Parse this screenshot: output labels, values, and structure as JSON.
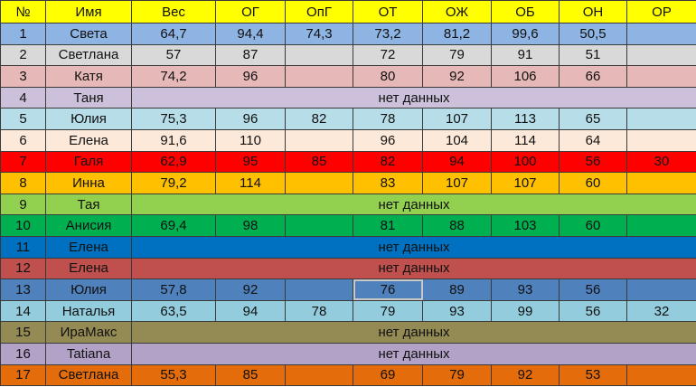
{
  "header": {
    "bg": "#ffff00",
    "columns": [
      "№",
      "Имя",
      "Вес",
      "ОГ",
      "ОпГ",
      "ОТ",
      "ОЖ",
      "ОБ",
      "ОН",
      "ОР"
    ]
  },
  "no_data_label": "нет данных",
  "selected_cell": {
    "row": 13,
    "column": "ОТ"
  },
  "rows": [
    {
      "n": "1",
      "name": "Света",
      "color": "#8eb4e3",
      "values": [
        "64,7",
        "94,4",
        "74,3",
        "73,2",
        "81,2",
        "99,6",
        "50,5",
        ""
      ]
    },
    {
      "n": "2",
      "name": "Светлана",
      "color": "#d9d9d9",
      "values": [
        "57",
        "87",
        "",
        "72",
        "79",
        "91",
        "51",
        ""
      ]
    },
    {
      "n": "3",
      "name": "Катя",
      "color": "#e6b9b8",
      "values": [
        "74,2",
        "96",
        "",
        "80",
        "92",
        "106",
        "66",
        ""
      ]
    },
    {
      "n": "4",
      "name": "Таня",
      "color": "#ccc0da",
      "no_data": true
    },
    {
      "n": "5",
      "name": "Юлия",
      "color": "#b7dee8",
      "values": [
        "75,3",
        "96",
        "82",
        "78",
        "107",
        "113",
        "65",
        ""
      ]
    },
    {
      "n": "6",
      "name": "Елена",
      "color": "#fde9d9",
      "values": [
        "91,6",
        "110",
        "",
        "96",
        "104",
        "114",
        "64",
        ""
      ]
    },
    {
      "n": "7",
      "name": "Галя",
      "color": "#ff0000",
      "values": [
        "62,9",
        "95",
        "85",
        "82",
        "94",
        "100",
        "56",
        "30"
      ]
    },
    {
      "n": "8",
      "name": "Инна",
      "color": "#ffc000",
      "values": [
        "79,2",
        "114",
        "",
        "83",
        "107",
        "107",
        "60",
        ""
      ]
    },
    {
      "n": "9",
      "name": "Тая",
      "color": "#92d050",
      "no_data": true
    },
    {
      "n": "10",
      "name": "Анисия",
      "color": "#00b050",
      "values": [
        "69,4",
        "98",
        "",
        "81",
        "88",
        "103",
        "60",
        ""
      ]
    },
    {
      "n": "11",
      "name": "Елена",
      "color": "#0070c0",
      "no_data": true
    },
    {
      "n": "12",
      "name": "Елена",
      "color": "#c0504d",
      "no_data": true
    },
    {
      "n": "13",
      "name": "Юлия",
      "color": "#4f81bd",
      "values": [
        "57,8",
        "92",
        "",
        "76",
        "89",
        "93",
        "56",
        ""
      ]
    },
    {
      "n": "14",
      "name": "Наталья",
      "color": "#93cddd",
      "values": [
        "63,5",
        "94",
        "78",
        "79",
        "93",
        "99",
        "56",
        "32"
      ]
    },
    {
      "n": "15",
      "name": "ИраМакс",
      "color": "#948a54",
      "no_data": true
    },
    {
      "n": "16",
      "name": "Tatiana",
      "color": "#b2a2c7",
      "no_data": true
    },
    {
      "n": "17",
      "name": "Светлана",
      "color": "#e46c0a",
      "values": [
        "55,3",
        "85",
        "",
        "69",
        "79",
        "92",
        "53",
        ""
      ]
    }
  ]
}
